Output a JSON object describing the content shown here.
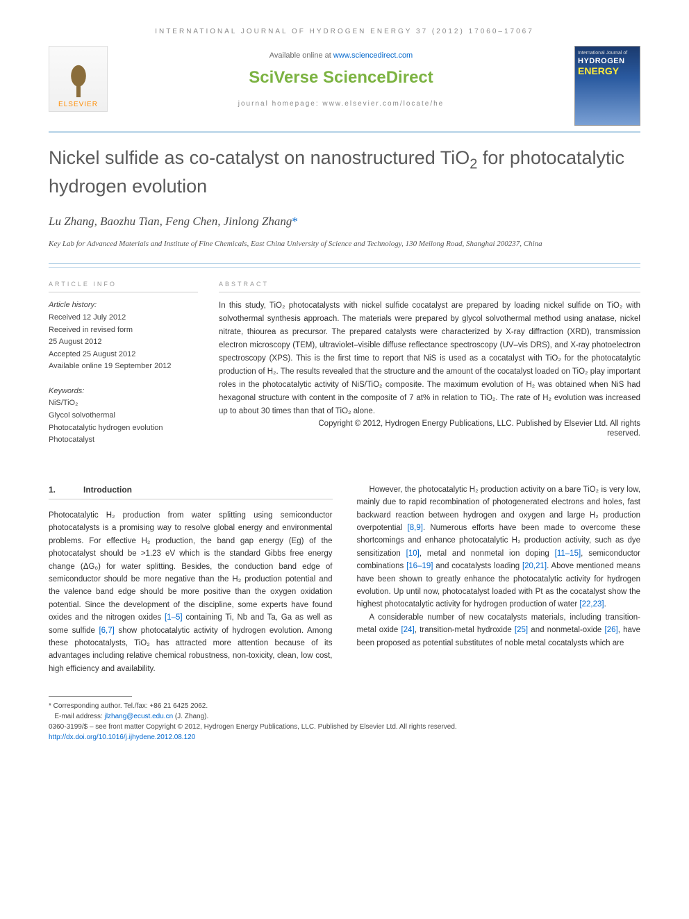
{
  "journal_header": "INTERNATIONAL JOURNAL OF HYDROGEN ENERGY 37 (2012) 17060–17067",
  "banner": {
    "elsevier": "ELSEVIER",
    "available_prefix": "Available online at ",
    "available_link": "www.sciencedirect.com",
    "sciverse_1": "SciVerse ",
    "sciverse_2": "ScienceDirect",
    "homepage_prefix": "journal homepage: ",
    "homepage_link": "www.elsevier.com/locate/he",
    "cover": {
      "line1": "International Journal of",
      "line2": "HYDROGEN",
      "line3": "ENERGY"
    }
  },
  "title_parts": {
    "p1": "Nickel sulfide as co-catalyst on nanostructured TiO",
    "p2": "2",
    "p3": " for photocatalytic hydrogen evolution"
  },
  "authors": "Lu Zhang, Baozhu Tian, Feng Chen, Jinlong Zhang",
  "corr_mark": "*",
  "affiliation": "Key Lab for Advanced Materials and Institute of Fine Chemicals, East China University of Science and Technology, 130 Meilong Road, Shanghai 200237, China",
  "info": {
    "label": "ARTICLE INFO",
    "history_label": "Article history:",
    "history": [
      "Received 12 July 2012",
      "Received in revised form",
      "25 August 2012",
      "Accepted 25 August 2012",
      "Available online 19 September 2012"
    ],
    "keywords_label": "Keywords:",
    "keywords": [
      "NiS/TiO₂",
      "Glycol solvothermal",
      "Photocatalytic hydrogen evolution",
      "Photocatalyst"
    ]
  },
  "abstract": {
    "label": "ABSTRACT",
    "text": "In this study, TiO₂ photocatalysts with nickel sulfide cocatalyst are prepared by loading nickel sulfide on TiO₂ with solvothermal synthesis approach. The materials were prepared by glycol solvothermal method using anatase, nickel nitrate, thiourea as precursor. The prepared catalysts were characterized by X-ray diffraction (XRD), transmission electron microscopy (TEM), ultraviolet–visible diffuse reflectance spectroscopy (UV–vis DRS), and X-ray photoelectron spectroscopy (XPS). This is the first time to report that NiS is used as a cocatalyst with TiO₂ for the photocatalytic production of H₂. The results revealed that the structure and the amount of the cocatalyst loaded on TiO₂ play important roles in the photocatalytic activity of NiS/TiO₂ composite. The maximum evolution of H₂ was obtained when NiS had hexagonal structure with content in the composite of 7 at% in relation to TiO₂. The rate of H₂ evolution was increased up to about 30 times than that of TiO₂ alone.",
    "copyright1": "Copyright © 2012, Hydrogen Energy Publications, LLC. Published by Elsevier Ltd. All rights",
    "copyright2": "reserved."
  },
  "section1": {
    "num": "1.",
    "title": "Introduction"
  },
  "col1": {
    "p1a": "Photocatalytic H₂ production from water splitting using semiconductor photocatalysts is a promising way to resolve global energy and environmental problems. For effective H₂ production, the band gap energy (Eg) of the photocatalyst should be >1.23 eV which is the standard Gibbs free energy change (ΔG₀) for water splitting. Besides, the conduction band edge of semiconductor should be more negative than the H₂ production potential and the valence band edge should be more positive than the oxygen oxidation potential. Since the development of the discipline, some experts have found oxides and the nitrogen oxides ",
    "r1": "[1–5]",
    "p1b": " containing Ti, Nb and Ta, Ga as well as some sulfide ",
    "r2": "[6,7]",
    "p1c": " show photocatalytic activity of hydrogen evolution. Among these photocatalysts, TiO₂ has attracted more attention because of its advantages including relative chemical robustness, non-toxicity, clean, low cost, high efficiency and availability."
  },
  "col2": {
    "p1a": "However, the photocatalytic H₂ production activity on a bare TiO₂ is very low, mainly due to rapid recombination of photogenerated electrons and holes, fast backward reaction between hydrogen and oxygen and large H₂ production overpotential ",
    "r1": "[8,9]",
    "p1b": ". Numerous efforts have been made to overcome these shortcomings and enhance photocatalytic H₂ production activity, such as dye sensitization ",
    "r2": "[10]",
    "p1c": ", metal and nonmetal ion doping ",
    "r3": "[11–15]",
    "p1d": ", semiconductor combinations ",
    "r4": "[16–19]",
    "p1e": " and cocatalysts loading ",
    "r5": "[20,21]",
    "p1f": ". Above mentioned means have been shown to greatly enhance the photocatalytic activity for hydrogen evolution. Up until now, photocatalyst loaded with Pt as the cocatalyst show the highest photocatalytic activity for hydrogen production of water ",
    "r6": "[22,23]",
    "p1g": ".",
    "p2a": "A considerable number of new cocatalysts materials, including transition-metal oxide ",
    "r7": "[24]",
    "p2b": ", transition-metal hydroxide ",
    "r8": "[25]",
    "p2c": " and nonmetal-oxide ",
    "r9": "[26]",
    "p2d": ", have been proposed as potential substitutes of noble metal cocatalysts which are"
  },
  "footer": {
    "corr": "* Corresponding author. Tel./fax: +86 21 6425 2062.",
    "email_label": "E-mail address: ",
    "email": "jlzhang@ecust.edu.cn",
    "email_suffix": " (J. Zhang).",
    "issn": "0360-3199/$ – see front matter Copyright © 2012, Hydrogen Energy Publications, LLC. Published by Elsevier Ltd. All rights reserved.",
    "doi": "http://dx.doi.org/10.1016/j.ijhydene.2012.08.120"
  }
}
